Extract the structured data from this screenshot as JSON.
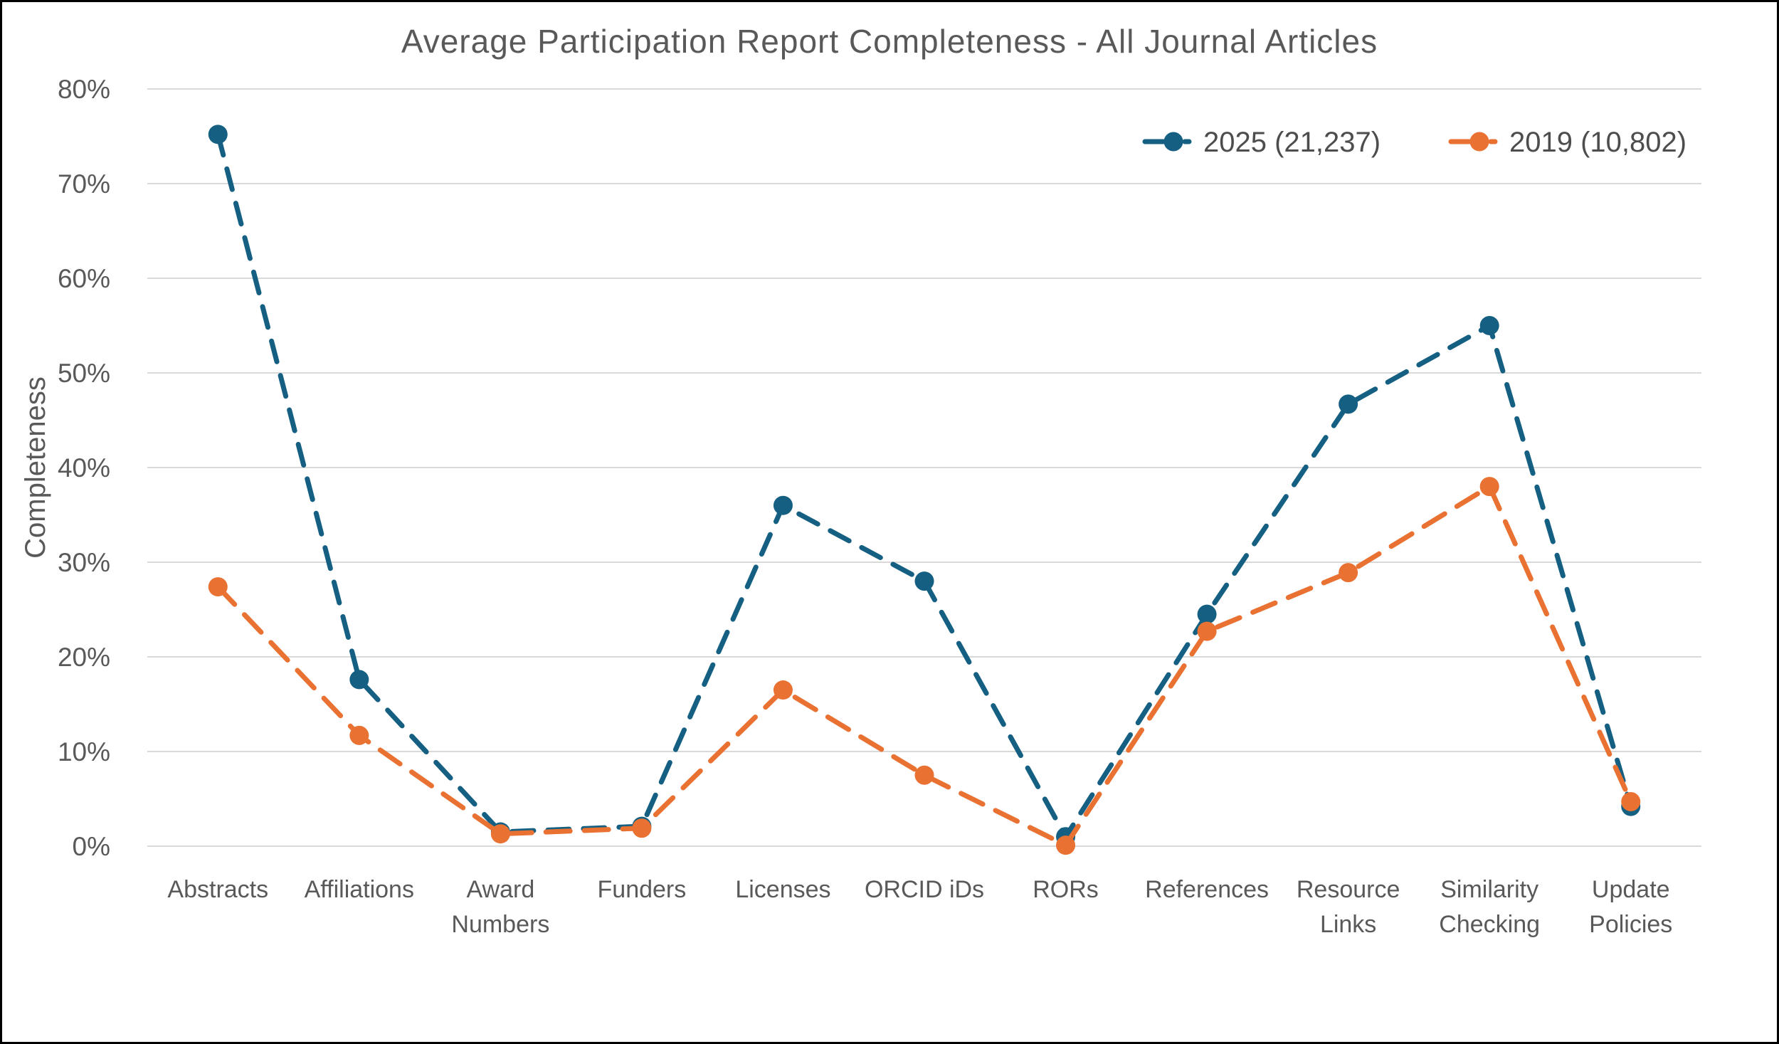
{
  "frame": {
    "background": "#FFFFFF",
    "border_color": "#000000"
  },
  "chart_data": {
    "type": "line",
    "title": "Average Participation Report Completeness - All Journal Articles",
    "ylabel": "Completeness",
    "xlabel": "",
    "categories": [
      "Abstracts",
      "Affiliations",
      "Award Numbers",
      "Funders",
      "Licenses",
      "ORCID iDs",
      "RORs",
      "References",
      "Resource Links",
      "Similarity Checking",
      "Update Policies"
    ],
    "series": [
      {
        "name": "2025 (21,237)",
        "color": "#156082",
        "dash": [
          30,
          20
        ],
        "values": [
          75.2,
          17.6,
          1.5,
          2.1,
          36.0,
          28.0,
          1.0,
          24.5,
          46.7,
          55.0,
          4.2
        ]
      },
      {
        "name": "2019 (10,802)",
        "color": "#E97132",
        "dash": [
          34,
          20
        ],
        "values": [
          27.4,
          11.7,
          1.3,
          1.9,
          16.5,
          7.5,
          0.1,
          22.7,
          28.9,
          38.0,
          4.7
        ]
      }
    ],
    "ylim": [
      0,
      80
    ],
    "y_tick_labels": [
      "0%",
      "10%",
      "20%",
      "30%",
      "40%",
      "50%",
      "60%",
      "70%",
      "80%"
    ],
    "grid": true,
    "legend_position": "top-right",
    "text_color": "#595959",
    "grid_color": "#D9D9D9"
  }
}
